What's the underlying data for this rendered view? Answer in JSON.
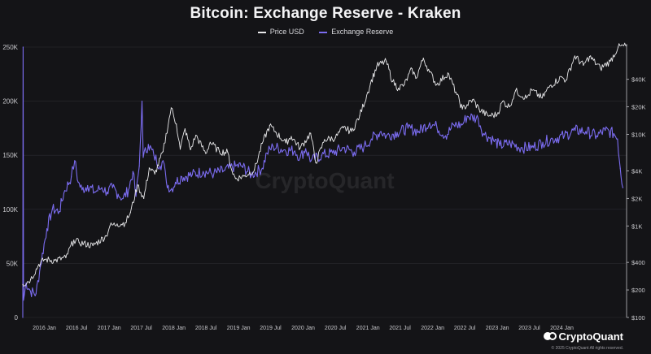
{
  "chart_data": {
    "type": "line",
    "title": "Bitcoin: Exchange Reserve - Kraken",
    "watermark": "CryptoQuant",
    "colors": {
      "price": "#e8e8ea",
      "reserve": "#7b6cf0",
      "background": "#141417",
      "grid": "#2a2a30"
    },
    "x_ticks": [
      "2016 Jan",
      "2016 Jul",
      "2017 Jan",
      "2017 Jul",
      "2018 Jan",
      "2018 Jul",
      "2019 Jan",
      "2019 Jul",
      "2020 Jan",
      "2020 Jul",
      "2021 Jan",
      "2021 Jul",
      "2022 Jan",
      "2022 Jul",
      "2023 Jan",
      "2023 Jul",
      "2024 Jan"
    ],
    "x_range": [
      "2015-09-01",
      "2024-12-31"
    ],
    "y_left": {
      "ticks": [
        "0",
        "50K",
        "100K",
        "150K",
        "200K",
        "250K"
      ],
      "range": [
        0,
        250000
      ]
    },
    "y_right": {
      "scale": "log",
      "ticks": [
        "$100",
        "$200",
        "$400",
        "$1K",
        "$2K",
        "$4K",
        "$10K",
        "$20K",
        "$40K"
      ],
      "tick_values": [
        100,
        200,
        400,
        1000,
        2000,
        4000,
        10000,
        20000,
        40000
      ],
      "range": [
        100,
        90000
      ]
    },
    "series": [
      {
        "name": "Price USD",
        "axis": "right",
        "points": [
          [
            "2015-09-01",
            230
          ],
          [
            "2015-10-15",
            260
          ],
          [
            "2015-12-01",
            380
          ],
          [
            "2016-01-01",
            430
          ],
          [
            "2016-03-01",
            420
          ],
          [
            "2016-05-01",
            450
          ],
          [
            "2016-06-15",
            700
          ],
          [
            "2016-07-15",
            660
          ],
          [
            "2016-10-01",
            610
          ],
          [
            "2016-12-15",
            780
          ],
          [
            "2017-01-05",
            1000
          ],
          [
            "2017-02-15",
            1050
          ],
          [
            "2017-04-01",
            1080
          ],
          [
            "2017-05-01",
            1400
          ],
          [
            "2017-06-10",
            2800
          ],
          [
            "2017-07-15",
            2000
          ],
          [
            "2017-08-15",
            4300
          ],
          [
            "2017-09-15",
            3700
          ],
          [
            "2017-11-01",
            6500
          ],
          [
            "2017-12-17",
            19500
          ],
          [
            "2018-01-15",
            13000
          ],
          [
            "2018-02-06",
            6900
          ],
          [
            "2018-03-05",
            11500
          ],
          [
            "2018-04-05",
            6800
          ],
          [
            "2018-05-05",
            9800
          ],
          [
            "2018-06-30",
            6200
          ],
          [
            "2018-07-25",
            8200
          ],
          [
            "2018-09-15",
            6500
          ],
          [
            "2018-11-01",
            6400
          ],
          [
            "2018-11-25",
            4000
          ],
          [
            "2018-12-15",
            3300
          ],
          [
            "2019-02-01",
            3500
          ],
          [
            "2019-04-01",
            4100
          ],
          [
            "2019-05-15",
            8000
          ],
          [
            "2019-06-26",
            12500
          ],
          [
            "2019-08-01",
            10500
          ],
          [
            "2019-09-25",
            8100
          ],
          [
            "2019-10-26",
            9500
          ],
          [
            "2019-12-15",
            7100
          ],
          [
            "2020-02-12",
            10300
          ],
          [
            "2020-03-12",
            4900
          ],
          [
            "2020-05-01",
            8800
          ],
          [
            "2020-07-01",
            9200
          ],
          [
            "2020-08-15",
            11800
          ],
          [
            "2020-10-01",
            10800
          ],
          [
            "2020-11-15",
            16000
          ],
          [
            "2020-12-31",
            29000
          ],
          [
            "2021-01-15",
            36000
          ],
          [
            "2021-02-20",
            56000
          ],
          [
            "2021-04-14",
            63000
          ],
          [
            "2021-05-20",
            38000
          ],
          [
            "2021-06-22",
            32000
          ],
          [
            "2021-07-25",
            35000
          ],
          [
            "2021-09-07",
            52000
          ],
          [
            "2021-09-28",
            41000
          ],
          [
            "2021-11-10",
            68000
          ],
          [
            "2021-12-15",
            48000
          ],
          [
            "2022-01-24",
            35000
          ],
          [
            "2022-03-28",
            47000
          ],
          [
            "2022-05-12",
            29000
          ],
          [
            "2022-06-18",
            19000
          ],
          [
            "2022-08-15",
            24000
          ],
          [
            "2022-09-20",
            19000
          ],
          [
            "2022-11-09",
            16000
          ],
          [
            "2022-12-31",
            16500
          ],
          [
            "2023-01-31",
            23000
          ],
          [
            "2023-03-10",
            20000
          ],
          [
            "2023-04-14",
            30000
          ],
          [
            "2023-06-15",
            25000
          ],
          [
            "2023-07-15",
            30500
          ],
          [
            "2023-09-11",
            25000
          ],
          [
            "2023-10-25",
            34000
          ],
          [
            "2023-12-31",
            42500
          ],
          [
            "2024-01-23",
            39000
          ],
          [
            "2024-03-14",
            72000
          ],
          [
            "2024-05-01",
            57000
          ],
          [
            "2024-06-05",
            71000
          ],
          [
            "2024-08-05",
            53000
          ],
          [
            "2024-09-30",
            63000
          ],
          [
            "2024-11-13",
            90000
          ],
          [
            "2024-12-31",
            93000
          ]
        ]
      },
      {
        "name": "Exchange Reserve",
        "axis": "left",
        "points": [
          [
            "2015-09-01",
            0
          ],
          [
            "2015-09-03",
            250000
          ],
          [
            "2015-09-05",
            16000
          ],
          [
            "2015-09-20",
            32000
          ],
          [
            "2015-10-15",
            24000
          ],
          [
            "2015-11-15",
            22000
          ],
          [
            "2015-12-10",
            48000
          ],
          [
            "2016-01-15",
            82000
          ],
          [
            "2016-02-15",
            100000
          ],
          [
            "2016-03-25",
            98000
          ],
          [
            "2016-04-20",
            115000
          ],
          [
            "2016-06-01",
            130000
          ],
          [
            "2016-06-20",
            145000
          ],
          [
            "2016-07-10",
            125000
          ],
          [
            "2016-08-01",
            118000
          ],
          [
            "2016-09-01",
            122000
          ],
          [
            "2016-10-10",
            116000
          ],
          [
            "2016-11-20",
            120000
          ],
          [
            "2016-12-20",
            116000
          ],
          [
            "2017-01-20",
            120000
          ],
          [
            "2017-02-20",
            114000
          ],
          [
            "2017-03-20",
            110000
          ],
          [
            "2017-04-20",
            118000
          ],
          [
            "2017-05-15",
            135000
          ],
          [
            "2017-06-01",
            112000
          ],
          [
            "2017-06-20",
            140000
          ],
          [
            "2017-07-05",
            200000
          ],
          [
            "2017-07-12",
            148000
          ],
          [
            "2017-08-10",
            160000
          ],
          [
            "2017-09-10",
            150000
          ],
          [
            "2017-10-15",
            140000
          ],
          [
            "2017-11-01",
            145000
          ],
          [
            "2017-11-20",
            125000
          ],
          [
            "2017-12-15",
            118000
          ],
          [
            "2018-01-10",
            125000
          ],
          [
            "2018-02-15",
            130000
          ],
          [
            "2018-04-15",
            132000
          ],
          [
            "2018-06-15",
            135000
          ],
          [
            "2018-08-15",
            133000
          ],
          [
            "2018-10-15",
            136000
          ],
          [
            "2018-12-15",
            140000
          ],
          [
            "2019-01-20",
            140000
          ],
          [
            "2019-03-15",
            132000
          ],
          [
            "2019-05-15",
            138000
          ],
          [
            "2019-06-10",
            152000
          ],
          [
            "2019-07-15",
            158000
          ],
          [
            "2019-09-15",
            155000
          ],
          [
            "2019-11-15",
            154000
          ],
          [
            "2019-12-15",
            148000
          ],
          [
            "2020-01-15",
            156000
          ],
          [
            "2020-02-15",
            145000
          ],
          [
            "2020-04-15",
            150000
          ],
          [
            "2020-06-15",
            152000
          ],
          [
            "2020-08-15",
            157000
          ],
          [
            "2020-10-15",
            153000
          ],
          [
            "2020-12-10",
            158000
          ],
          [
            "2021-01-20",
            165000
          ],
          [
            "2021-03-15",
            172000
          ],
          [
            "2021-04-15",
            168000
          ],
          [
            "2021-06-15",
            171000
          ],
          [
            "2021-08-15",
            175000
          ],
          [
            "2021-10-15",
            172000
          ],
          [
            "2021-12-15",
            180000
          ],
          [
            "2022-01-25",
            176000
          ],
          [
            "2022-03-15",
            168000
          ],
          [
            "2022-05-01",
            178000
          ],
          [
            "2022-06-15",
            178000
          ],
          [
            "2022-07-15",
            186000
          ],
          [
            "2022-09-15",
            184000
          ],
          [
            "2022-10-15",
            170000
          ],
          [
            "2022-12-10",
            164000
          ],
          [
            "2023-01-15",
            159000
          ],
          [
            "2023-03-15",
            161000
          ],
          [
            "2023-05-15",
            157000
          ],
          [
            "2023-07-15",
            157000
          ],
          [
            "2023-09-15",
            162000
          ],
          [
            "2023-11-10",
            165000
          ],
          [
            "2024-01-15",
            168000
          ],
          [
            "2024-03-15",
            173000
          ],
          [
            "2024-05-15",
            172000
          ],
          [
            "2024-07-15",
            168000
          ],
          [
            "2024-09-01",
            173000
          ],
          [
            "2024-10-20",
            170000
          ],
          [
            "2024-11-10",
            165000
          ],
          [
            "2024-11-25",
            138000
          ],
          [
            "2024-12-10",
            120000
          ]
        ]
      }
    ],
    "footer": "© 2025 CryptoQuant All rights reserved."
  },
  "brand": {
    "name": "CryptoQuant",
    "copyright": "© 2025 CryptoQuant All rights reserved."
  }
}
